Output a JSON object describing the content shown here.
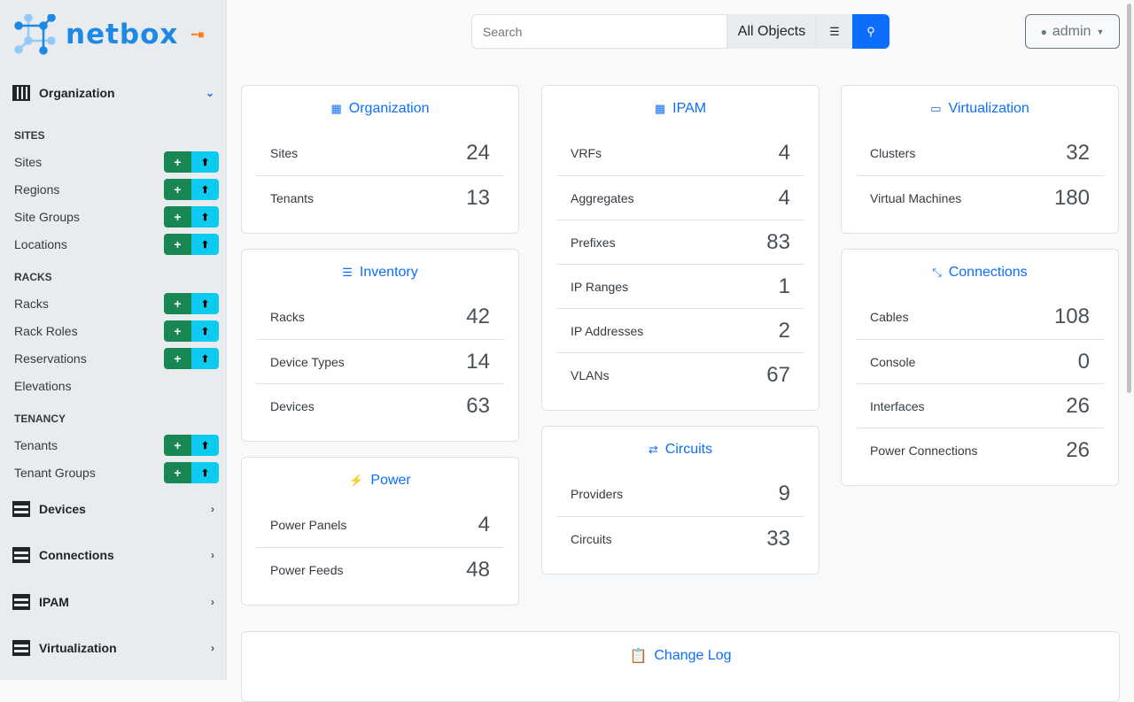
{
  "brand": "netbox",
  "sidebar": {
    "org_label": "Organization",
    "groups": [
      {
        "title": "SITES",
        "items": [
          {
            "label": "Sites",
            "btns": true
          },
          {
            "label": "Regions",
            "btns": true
          },
          {
            "label": "Site Groups",
            "btns": true
          },
          {
            "label": "Locations",
            "btns": true
          }
        ]
      },
      {
        "title": "RACKS",
        "items": [
          {
            "label": "Racks",
            "btns": true
          },
          {
            "label": "Rack Roles",
            "btns": true
          },
          {
            "label": "Reservations",
            "btns": true
          },
          {
            "label": "Elevations",
            "btns": false
          }
        ]
      },
      {
        "title": "TENANCY",
        "items": [
          {
            "label": "Tenants",
            "btns": true
          },
          {
            "label": "Tenant Groups",
            "btns": true
          }
        ]
      }
    ],
    "sections": [
      "Devices",
      "Connections",
      "IPAM",
      "Virtualization"
    ]
  },
  "search": {
    "placeholder": "Search",
    "scope": "All Objects"
  },
  "user": {
    "name": "admin"
  },
  "accent": "#0d6efd",
  "cards": [
    [
      {
        "title": "Organization",
        "icon": "building-icon",
        "rows": [
          [
            "Sites",
            "24"
          ],
          [
            "Tenants",
            "13"
          ]
        ]
      },
      {
        "title": "Inventory",
        "icon": "server-icon",
        "rows": [
          [
            "Racks",
            "42"
          ],
          [
            "Device Types",
            "14"
          ],
          [
            "Devices",
            "63"
          ]
        ]
      },
      {
        "title": "Power",
        "icon": "lightning-icon",
        "rows": [
          [
            "Power Panels",
            "4"
          ],
          [
            "Power Feeds",
            "48"
          ]
        ]
      }
    ],
    [
      {
        "title": "IPAM",
        "icon": "ip-icon",
        "rows": [
          [
            "VRFs",
            "4"
          ],
          [
            "Aggregates",
            "4"
          ],
          [
            "Prefixes",
            "83"
          ],
          [
            "IP Ranges",
            "1"
          ],
          [
            "IP Addresses",
            "2"
          ],
          [
            "VLANs",
            "67"
          ]
        ]
      },
      {
        "title": "Circuits",
        "icon": "circuit-icon",
        "rows": [
          [
            "Providers",
            "9"
          ],
          [
            "Circuits",
            "33"
          ]
        ]
      }
    ],
    [
      {
        "title": "Virtualization",
        "icon": "monitor-icon",
        "rows": [
          [
            "Clusters",
            "32"
          ],
          [
            "Virtual Machines",
            "180"
          ]
        ]
      },
      {
        "title": "Connections",
        "icon": "cable-icon",
        "rows": [
          [
            "Cables",
            "108"
          ],
          [
            "Console",
            "0"
          ],
          [
            "Interfaces",
            "26"
          ],
          [
            "Power Connections",
            "26"
          ]
        ]
      }
    ]
  ],
  "changelog": {
    "title": "Change Log"
  }
}
